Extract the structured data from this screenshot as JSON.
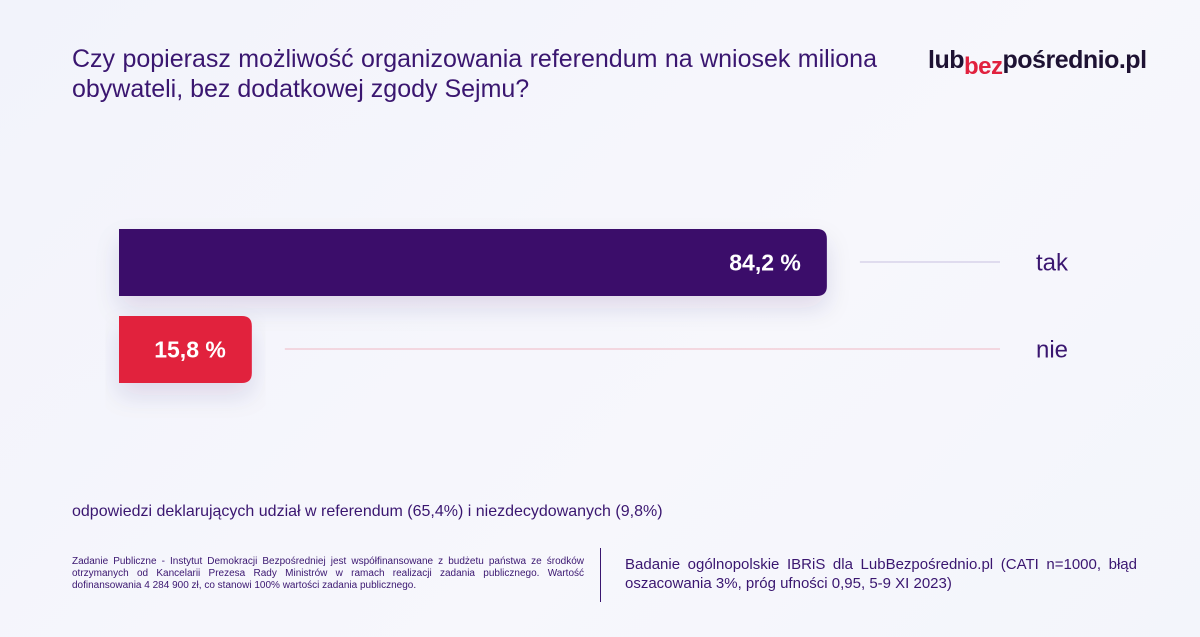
{
  "title": "Czy popierasz możliwość organizowania referendum na wniosek miliona obywateli, bez dodatkowej zgody Sejmu?",
  "logo": {
    "part1": "lub",
    "part2": "bez",
    "part3": "pośrednio.pl"
  },
  "colors": {
    "tak": "#3a0a6b",
    "nie": "#e1213e",
    "text": "#3a1670"
  },
  "chart_data": {
    "type": "bar",
    "orientation": "horizontal",
    "categories": [
      "tak",
      "nie"
    ],
    "values": [
      84.2,
      15.8
    ],
    "value_labels": [
      "84,2 %",
      "15,8 %"
    ],
    "xlim": [
      0,
      100
    ],
    "grid": false,
    "legend": "none"
  },
  "note": "odpowiedzi deklarujących udział w referendum (65,4%) i niezdecydowanych (9,8%)",
  "funding": "Zadanie Publiczne - Instytut Demokracji Bezpośredniej jest współfinansowane z budżetu państwa ze środków otrzymanych od Kancelarii Prezesa Rady Ministrów w ramach realizacji zadania publicznego. Wartość dofinansowania 4 284 900 zł, co stanowi 100% wartości zadania publicznego.",
  "source": "Badanie ogólnopolskie IBRiS dla LubBezpośrednio.pl (CATI n=1000, błąd oszacowania 3%, próg ufności 0,95, 5-9 XI 2023)"
}
